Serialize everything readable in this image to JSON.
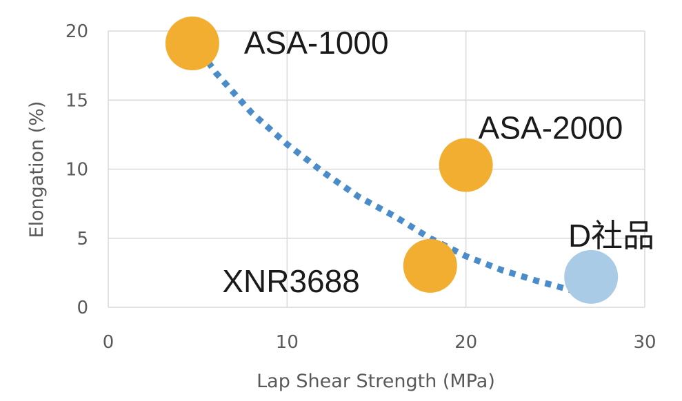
{
  "chart_data": {
    "type": "scatter",
    "title": "",
    "xlabel": "Lap Shear Strength (MPa)",
    "ylabel": "Elongation (%)",
    "xlim": [
      0,
      30
    ],
    "ylim": [
      0,
      20
    ],
    "xticks": [
      0,
      10,
      20,
      30
    ],
    "yticks": [
      0,
      5,
      10,
      15,
      20
    ],
    "grid": true,
    "points": [
      {
        "label": "ASA-1000",
        "x": 4.7,
        "y": 19.1,
        "color": "#F2AE30"
      },
      {
        "label": "ASA-2000",
        "x": 20.0,
        "y": 10.3,
        "color": "#F2AE30"
      },
      {
        "label": "XNR3688",
        "x": 18.0,
        "y": 3.0,
        "color": "#F2AE30"
      },
      {
        "label": "D社品",
        "x": 27.0,
        "y": 2.2,
        "color": "#A9CBE5"
      }
    ],
    "trendline": {
      "type": "exponential",
      "style": "dotted",
      "color": "#4A8BC9",
      "x": [
        4.0,
        6.0,
        8.0,
        10.0,
        12.0,
        14.0,
        16.0,
        18.0,
        20.0,
        22.0,
        24.0,
        26.0
      ],
      "y": [
        20.7,
        17.0,
        14.1,
        11.8,
        9.8,
        8.0,
        6.6,
        5.0,
        3.7,
        2.7,
        1.9,
        1.2
      ]
    }
  }
}
